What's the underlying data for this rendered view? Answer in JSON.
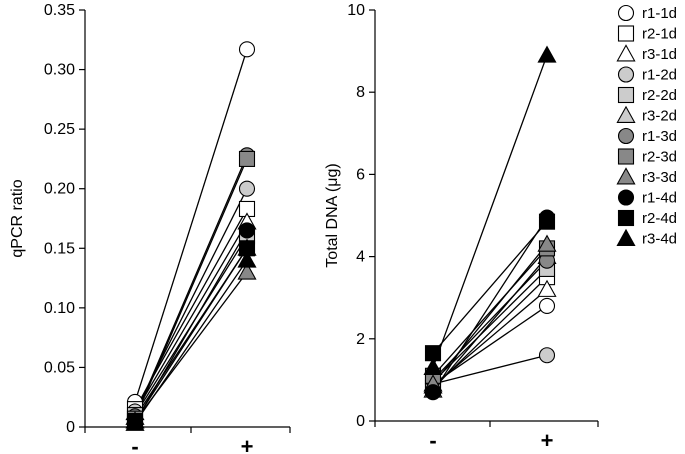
{
  "chart_data": [
    {
      "type": "line",
      "ylabel": "qPCR ratio",
      "xlabel": "",
      "categories": [
        "-",
        "+"
      ],
      "ylim": [
        0,
        0.35
      ],
      "yticks": [
        "0",
        "0.05",
        "0.10",
        "0.15",
        "0.20",
        "0.25",
        "0.30",
        "0.35"
      ],
      "series": [
        {
          "name": "r1-1d",
          "values": [
            0.021,
            0.317
          ]
        },
        {
          "name": "r2-1d",
          "values": [
            0.015,
            0.183
          ]
        },
        {
          "name": "r3-1d",
          "values": [
            0.012,
            0.172
          ]
        },
        {
          "name": "r1-2d",
          "values": [
            0.013,
            0.2
          ]
        },
        {
          "name": "r2-2d",
          "values": [
            0.01,
            0.16
          ]
        },
        {
          "name": "r3-2d",
          "values": [
            0.008,
            0.15
          ]
        },
        {
          "name": "r1-3d",
          "values": [
            0.009,
            0.228
          ]
        },
        {
          "name": "r2-3d",
          "values": [
            0.007,
            0.225
          ]
        },
        {
          "name": "r3-3d",
          "values": [
            0.005,
            0.13
          ]
        },
        {
          "name": "r1-4d",
          "values": [
            0.004,
            0.165
          ]
        },
        {
          "name": "r2-4d",
          "values": [
            0.005,
            0.15
          ]
        },
        {
          "name": "r3-4d",
          "values": [
            0.003,
            0.14
          ]
        }
      ]
    },
    {
      "type": "line",
      "ylabel": "Total DNA (μg)",
      "xlabel": "",
      "categories": [
        "-",
        "+"
      ],
      "ylim": [
        0,
        10
      ],
      "yticks": [
        "0",
        "2",
        "4",
        "6",
        "8",
        "10"
      ],
      "series": [
        {
          "name": "r1-1d",
          "values": [
            0.9,
            2.8
          ]
        },
        {
          "name": "r2-1d",
          "values": [
            0.8,
            3.5
          ]
        },
        {
          "name": "r3-1d",
          "values": [
            0.85,
            3.2
          ]
        },
        {
          "name": "r1-2d",
          "values": [
            0.9,
            1.6
          ]
        },
        {
          "name": "r2-2d",
          "values": [
            0.95,
            3.7
          ]
        },
        {
          "name": "r3-2d",
          "values": [
            0.75,
            4.0
          ]
        },
        {
          "name": "r1-3d",
          "values": [
            1.0,
            3.9
          ]
        },
        {
          "name": "r2-3d",
          "values": [
            1.1,
            4.2
          ]
        },
        {
          "name": "r3-3d",
          "values": [
            0.9,
            4.3
          ]
        },
        {
          "name": "r1-4d",
          "values": [
            0.7,
            4.95
          ]
        },
        {
          "name": "r2-4d",
          "values": [
            1.65,
            4.85
          ]
        },
        {
          "name": "r3-4d",
          "values": [
            1.3,
            8.9
          ]
        }
      ]
    }
  ],
  "legend": {
    "placement": "right",
    "entries": [
      {
        "label": "r1-1d",
        "shape": "circle",
        "fill": "#ffffff"
      },
      {
        "label": "r2-1d",
        "shape": "square",
        "fill": "#ffffff"
      },
      {
        "label": "r3-1d",
        "shape": "triangle",
        "fill": "#ffffff"
      },
      {
        "label": "r1-2d",
        "shape": "circle",
        "fill": "#cccccc"
      },
      {
        "label": "r2-2d",
        "shape": "square",
        "fill": "#cccccc"
      },
      {
        "label": "r3-2d",
        "shape": "triangle",
        "fill": "#cccccc"
      },
      {
        "label": "r1-3d",
        "shape": "circle",
        "fill": "#888888"
      },
      {
        "label": "r2-3d",
        "shape": "square",
        "fill": "#888888"
      },
      {
        "label": "r3-3d",
        "shape": "triangle",
        "fill": "#888888"
      },
      {
        "label": "r1-4d",
        "shape": "circle",
        "fill": "#000000"
      },
      {
        "label": "r2-4d",
        "shape": "square",
        "fill": "#000000"
      },
      {
        "label": "r3-4d",
        "shape": "triangle",
        "fill": "#000000"
      }
    ]
  }
}
